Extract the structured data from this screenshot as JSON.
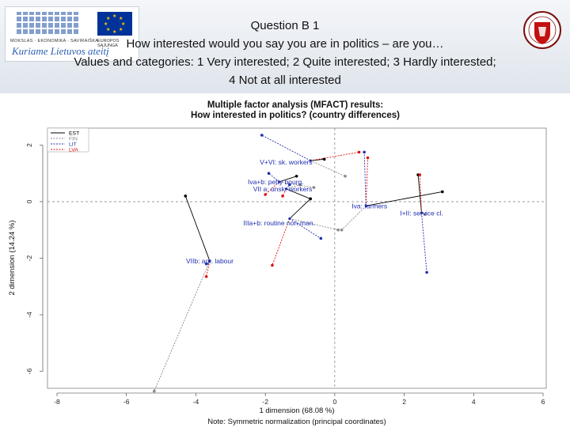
{
  "header": {
    "title": "Question B 1",
    "question": "How interested would you say you are in politics – are you…",
    "categories_line1": "Values and categories: 1 Very interested; 2 Quite interested; 3 Hardly interested;",
    "categories_line2": "4 Not at all interested",
    "logo_left_fund_text": "MOKSLAS · EKONOMIKA · SAVIRAIŠKA",
    "logo_left_fund_text2": "EUROPOS SĄJUNGA",
    "logo_left_slogan": "Kuriame Lietuvos ateitį",
    "logo_right_name": "university-seal"
  },
  "chart_data": {
    "type": "scatter",
    "title": "Multiple factor analysis (MFACT) results:",
    "subtitle": "How interested in politics? (country differences)",
    "xlabel": "1 dimension (68.08 %)",
    "ylabel": "2 dimension (14.24 %)",
    "note": "Note: Symmetric normalization (principal coordinates)",
    "xlim": [
      -8,
      6
    ],
    "ylim": [
      -6.6,
      2.6
    ],
    "xticks": [
      -8,
      -6,
      -4,
      -2,
      0,
      2,
      4,
      6
    ],
    "yticks": [
      2,
      0,
      -2,
      -4,
      -6
    ],
    "legend_position": "top-left",
    "reference_lines": {
      "x": 0,
      "y": 0
    },
    "series": [
      {
        "name": "EST",
        "color": "#000000"
      },
      {
        "name": "FIN",
        "color": "#888888"
      },
      {
        "name": "LIT",
        "color": "#1f2fb0"
      },
      {
        "name": "LVA",
        "color": "#e01010"
      }
    ],
    "centers": [
      {
        "label": "V+VI: sk. workers",
        "x": -1.4,
        "y": 1.4
      },
      {
        "label": "Iva+b: petty bourg.",
        "x": -1.7,
        "y": 0.7
      },
      {
        "label": "VII a: unsk. workers",
        "x": -1.5,
        "y": 0.45
      },
      {
        "label": "Iva: farmers",
        "x": 1.0,
        "y": -0.15
      },
      {
        "label": "I+II: service cl.",
        "x": 2.5,
        "y": -0.4
      },
      {
        "label": "IIIa+b: routine non-man.",
        "x": -1.6,
        "y": -0.75
      },
      {
        "label": "VIIb: agr. labour",
        "x": -3.6,
        "y": -2.1
      }
    ],
    "groups": [
      {
        "center": [
          -0.7,
          1.45
        ],
        "points": {
          "EST": [
            -0.3,
            1.5
          ],
          "FIN": [
            0.3,
            0.9
          ],
          "LIT": [
            -2.1,
            2.35
          ],
          "LVA": [
            0.7,
            1.75
          ]
        }
      },
      {
        "center": [
          -1.6,
          0.7
        ],
        "points": {
          "EST": [
            -1.1,
            0.9
          ],
          "FIN": [
            -0.6,
            0.5
          ],
          "LIT": [
            -1.9,
            1.0
          ],
          "LVA": [
            -2.0,
            0.25
          ]
        }
      },
      {
        "center": [
          -1.4,
          0.45
        ],
        "points": {
          "EST": [
            -0.7,
            0.1
          ],
          "FIN": [
            -1.0,
            0.6
          ],
          "LIT": [
            -1.3,
            0.6
          ],
          "LVA": [
            -1.5,
            0.2
          ]
        }
      },
      {
        "center": [
          0.9,
          -0.15
        ],
        "points": {
          "EST": [
            3.1,
            0.35
          ],
          "FIN": [
            0.2,
            -1.0
          ],
          "LIT": [
            0.85,
            1.75
          ],
          "LVA": [
            0.95,
            1.55
          ]
        }
      },
      {
        "center": [
          2.5,
          -0.4
        ],
        "points": {
          "EST": [
            2.4,
            0.95
          ],
          "FIN": [
            2.6,
            -0.45
          ],
          "LIT": [
            2.65,
            -2.5
          ],
          "LVA": [
            2.45,
            0.95
          ]
        }
      },
      {
        "center": [
          -1.3,
          -0.6
        ],
        "points": {
          "EST": [
            -0.7,
            0.1
          ],
          "FIN": [
            0.1,
            -1.0
          ],
          "LIT": [
            -0.4,
            -1.3
          ],
          "LVA": [
            -1.8,
            -2.25
          ]
        }
      },
      {
        "center": [
          -3.6,
          -2.1
        ],
        "points": {
          "EST": [
            -4.3,
            0.2
          ],
          "FIN": [
            -5.2,
            -6.7
          ],
          "LIT": [
            -3.7,
            -2.2
          ],
          "LVA": [
            -3.7,
            -2.65
          ]
        }
      }
    ]
  }
}
